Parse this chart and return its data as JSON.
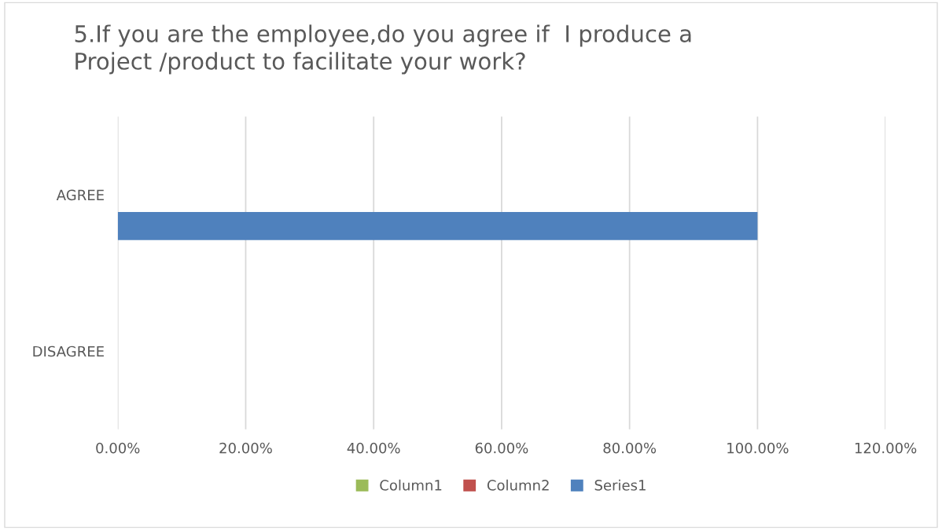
{
  "chart_data": {
    "type": "bar",
    "orientation": "horizontal",
    "title": "5.If you are the employee,do you agree if  I produce a\nProject /product to facilitate your work?",
    "categories": [
      "AGREE",
      "DISAGREE"
    ],
    "series": [
      {
        "name": "Column1",
        "color": "#9bbb59",
        "values": [
          null,
          null
        ]
      },
      {
        "name": "Column2",
        "color": "#c0504d",
        "values": [
          null,
          null
        ]
      },
      {
        "name": "Series1",
        "color": "#4f81bd",
        "values": [
          100,
          0
        ]
      }
    ],
    "xlim": [
      0,
      120
    ],
    "xticks": [
      {
        "value": 0,
        "label": "0.00%"
      },
      {
        "value": 20,
        "label": "20.00%"
      },
      {
        "value": 40,
        "label": "40.00%"
      },
      {
        "value": 60,
        "label": "60.00%"
      },
      {
        "value": 80,
        "label": "80.00%"
      },
      {
        "value": 100,
        "label": "100.00%"
      },
      {
        "value": 120,
        "label": "120.00%"
      }
    ],
    "grid": "x",
    "legend": "bottom"
  }
}
